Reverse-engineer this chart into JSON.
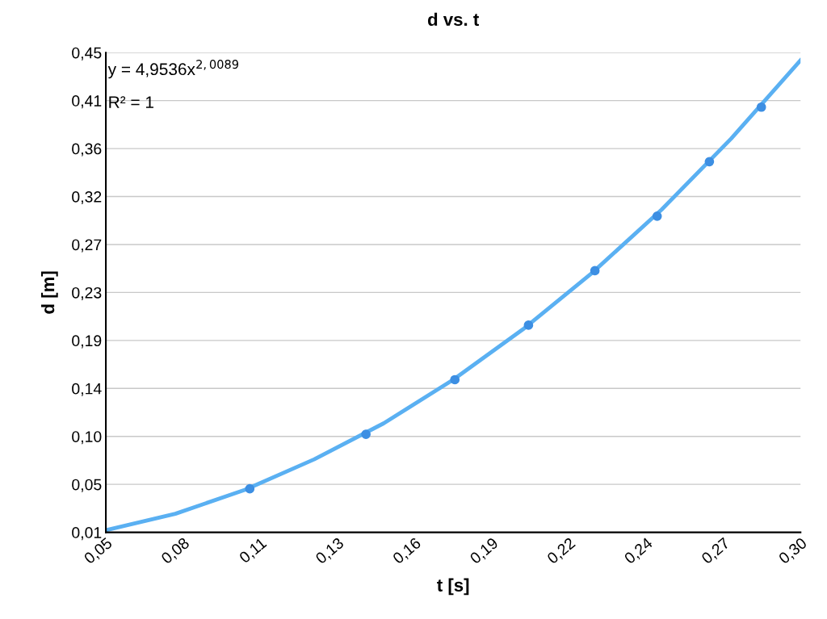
{
  "chart_data": {
    "type": "scatter",
    "title": "d vs. t",
    "xlabel": "t [s]",
    "ylabel": "d [m]",
    "annotations": [
      "y = 4,9536x$^{2,0089}$",
      "R² = 1"
    ],
    "series": [
      {
        "type": "line",
        "color": "#5ab0f2",
        "x": [
          0.05,
          0.075,
          0.1,
          0.125,
          0.15,
          0.175,
          0.2,
          0.225,
          0.25,
          0.275,
          0.3
        ],
        "values": [
          0.012,
          0.027,
          0.049,
          0.077,
          0.11,
          0.15,
          0.196,
          0.248,
          0.306,
          0.371,
          0.443
        ],
        "marker": "none"
      },
      {
        "color": "#3d8fe3",
        "x": [
          0.1018,
          0.1436,
          0.1756,
          0.2021,
          0.226,
          0.2484,
          0.2672,
          0.2859
        ],
        "values": [
          0.05,
          0.1,
          0.15,
          0.2,
          0.25,
          0.3,
          0.35,
          0.4
        ],
        "marker": "circle"
      }
    ],
    "xlim": [
      0.05,
      0.3
    ],
    "xticks": [
      {
        "value": 0.05,
        "label": "0,05"
      },
      {
        "value": 0.07778,
        "label": "0,08"
      },
      {
        "value": 0.10556,
        "label": "0,11"
      },
      {
        "value": 0.13333,
        "label": "0,13"
      },
      {
        "value": 0.16111,
        "label": "0,16"
      },
      {
        "value": 0.18889,
        "label": "0,19"
      },
      {
        "value": 0.21667,
        "label": "0,22"
      },
      {
        "value": 0.24444,
        "label": "0,24"
      },
      {
        "value": 0.27222,
        "label": "0,27"
      },
      {
        "value": 0.3,
        "label": "0,30"
      }
    ],
    "ylim": [
      0.01,
      0.45
    ],
    "yticks": [
      {
        "value": 0.01,
        "label": "0,01"
      },
      {
        "value": 0.054,
        "label": "0,05"
      },
      {
        "value": 0.098,
        "label": "0,10"
      },
      {
        "value": 0.142,
        "label": "0,14"
      },
      {
        "value": 0.186,
        "label": "0,19"
      },
      {
        "value": 0.23,
        "label": "0,23"
      },
      {
        "value": 0.274,
        "label": "0,27"
      },
      {
        "value": 0.318,
        "label": "0,32"
      },
      {
        "value": 0.362,
        "label": "0,36"
      },
      {
        "value": 0.406,
        "label": "0,41"
      },
      {
        "value": 0.45,
        "label": "0,45"
      }
    ],
    "grid": "y"
  }
}
